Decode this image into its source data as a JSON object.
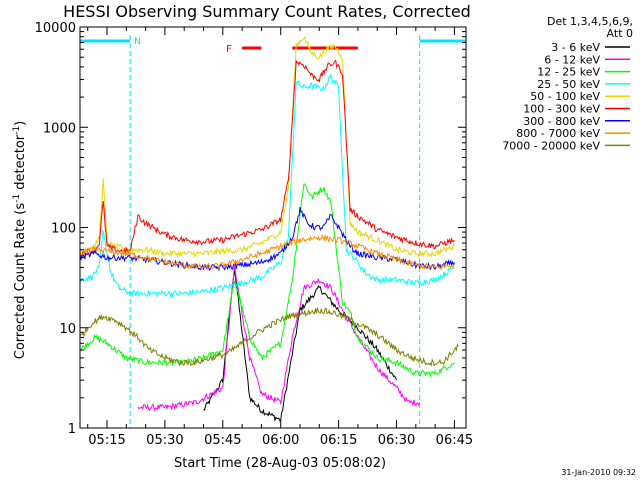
{
  "chart_data": {
    "type": "line",
    "title": "HESSI Observing Summary Count Rates, Corrected",
    "xlabel": "Start Time (28-Aug-03 05:08:02)",
    "ylabel_main": "Corrected Count Rate (s",
    "ylabel_sup1": "-1",
    "ylabel_mid": " detector",
    "ylabel_sup2": "-1",
    "ylabel_end": ")",
    "y_scale": "log",
    "ylim": [
      1,
      10000
    ],
    "xlim": [
      "05:08",
      "06:48"
    ],
    "x_ticks": [
      "05:15",
      "05:30",
      "05:45",
      "06:00",
      "06:15",
      "06:30",
      "06:45"
    ],
    "y_ticks": [
      "1",
      "10",
      "100",
      "1000",
      "10000"
    ],
    "legend": {
      "placement": "right",
      "header_line1": "Det 1,3,4,5,6,9,",
      "header_line2": "Att 0",
      "entries": [
        {
          "label": "3 - 6 keV",
          "color": "#000000"
        },
        {
          "label": "6 - 12 keV",
          "color": "#ff00ff"
        },
        {
          "label": "12 - 25 keV",
          "color": "#00ff00"
        },
        {
          "label": "25 - 50 keV",
          "color": "#00ffff"
        },
        {
          "label": "50 - 100 keV",
          "color": "#e6d800"
        },
        {
          "label": "100 - 300 keV",
          "color": "#ff0000"
        },
        {
          "label": "300 - 800 keV",
          "color": "#0000ff"
        },
        {
          "label": "800 - 7000 keV",
          "color": "#ff8c00"
        },
        {
          "label": "7000 - 20000 keV",
          "color": "#808000"
        }
      ]
    },
    "annotations": {
      "night_label": "N",
      "flare_label": "F",
      "night_color": "#00e5ff",
      "flare_color": "#ff0000",
      "night_intervals": [
        [
          "05:08",
          "05:21"
        ],
        [
          "06:36",
          "06:48"
        ]
      ],
      "night_boundaries": [
        "05:21",
        "06:36"
      ],
      "flare_intervals": [
        [
          "05:50",
          "05:55"
        ],
        [
          "06:03",
          "06:20"
        ]
      ]
    },
    "series": [
      {
        "name": "3 - 6 keV",
        "color": "#000000",
        "x": [
          "05:40",
          "05:45",
          "05:48",
          "05:52",
          "05:55",
          "06:00",
          "06:05",
          "06:10",
          "06:15",
          "06:20",
          "06:25",
          "06:30"
        ],
        "y": [
          1.5,
          3,
          40,
          2,
          1.5,
          1.2,
          15,
          25,
          15,
          10,
          6,
          3
        ]
      },
      {
        "name": "6 - 12 keV",
        "color": "#ff00ff",
        "x": [
          "05:23",
          "05:30",
          "05:38",
          "05:45",
          "05:48",
          "05:52",
          "05:55",
          "06:00",
          "06:03",
          "06:06",
          "06:10",
          "06:13",
          "06:16",
          "06:20",
          "06:25",
          "06:30",
          "06:33",
          "06:36"
        ],
        "y": [
          1.6,
          1.6,
          1.8,
          2.5,
          40,
          5,
          2.2,
          1.8,
          8,
          25,
          30,
          25,
          15,
          8,
          4,
          2.5,
          1.8,
          1.8
        ]
      },
      {
        "name": "12 - 25 keV",
        "color": "#00ff00",
        "x": [
          "05:08",
          "05:12",
          "05:15",
          "05:20",
          "05:25",
          "05:30",
          "05:35",
          "05:40",
          "05:45",
          "05:48",
          "05:52",
          "05:55",
          "06:00",
          "06:03",
          "06:06",
          "06:08",
          "06:11",
          "06:13",
          "06:16",
          "06:18",
          "06:20",
          "06:25",
          "06:30",
          "06:35",
          "06:40",
          "06:45"
        ],
        "y": [
          6,
          8,
          7,
          5,
          4.5,
          4.5,
          4.5,
          5,
          6,
          30,
          8,
          5,
          7,
          30,
          280,
          200,
          250,
          180,
          18,
          14,
          8,
          5,
          4.5,
          3.5,
          3.5,
          4.5
        ]
      },
      {
        "name": "25 - 50 keV",
        "color": "#00ffff",
        "x": [
          "05:08",
          "05:11",
          "05:13",
          "05:14",
          "05:16",
          "05:18",
          "05:21",
          "05:25",
          "05:30",
          "05:35",
          "05:40",
          "05:45",
          "05:50",
          "05:55",
          "06:00",
          "06:02",
          "06:04",
          "06:06",
          "06:08",
          "06:11",
          "06:13",
          "06:15",
          "06:17",
          "06:19",
          "06:22",
          "06:25",
          "06:30",
          "06:35",
          "06:40",
          "06:45"
        ],
        "y": [
          30,
          32,
          40,
          90,
          35,
          25,
          22,
          22,
          22,
          22,
          23,
          25,
          28,
          32,
          45,
          80,
          2800,
          2500,
          2600,
          2400,
          3200,
          2500,
          60,
          50,
          35,
          30,
          30,
          28,
          30,
          40
        ]
      },
      {
        "name": "50 - 100 keV",
        "color": "#e6d800",
        "x": [
          "05:08",
          "05:12",
          "05:13",
          "05:14",
          "05:15",
          "05:17",
          "05:19",
          "05:21",
          "05:25",
          "05:30",
          "05:35",
          "05:40",
          "05:45",
          "05:50",
          "05:55",
          "06:00",
          "06:02",
          "06:04",
          "06:06",
          "06:08",
          "06:10",
          "06:12",
          "06:14",
          "06:16",
          "06:18",
          "06:20",
          "06:25",
          "06:30",
          "06:35",
          "06:40",
          "06:45"
        ],
        "y": [
          60,
          65,
          80,
          300,
          70,
          65,
          62,
          60,
          60,
          55,
          55,
          55,
          58,
          60,
          70,
          90,
          250,
          6500,
          8000,
          5500,
          5000,
          6000,
          6500,
          5000,
          110,
          90,
          75,
          60,
          55,
          55,
          65
        ]
      },
      {
        "name": "100 - 300 keV",
        "color": "#ff0000",
        "x": [
          "05:08",
          "05:12",
          "05:13",
          "05:14",
          "05:15",
          "05:17",
          "05:19",
          "05:21",
          "05:23",
          "05:25",
          "05:30",
          "05:35",
          "05:40",
          "05:45",
          "05:50",
          "05:55",
          "06:00",
          "06:02",
          "06:04",
          "06:06",
          "06:08",
          "06:10",
          "06:12",
          "06:14",
          "06:16",
          "06:18",
          "06:20",
          "06:25",
          "06:30",
          "06:35",
          "06:40",
          "06:45"
        ],
        "y": [
          55,
          60,
          70,
          180,
          65,
          60,
          58,
          58,
          130,
          110,
          85,
          75,
          72,
          75,
          85,
          95,
          120,
          300,
          4500,
          4200,
          3300,
          3000,
          4000,
          4500,
          3500,
          150,
          130,
          95,
          80,
          70,
          65,
          75
        ]
      },
      {
        "name": "300 - 800 keV",
        "color": "#0000ff",
        "x": [
          "05:08",
          "05:12",
          "05:15",
          "05:20",
          "05:25",
          "05:30",
          "05:35",
          "05:40",
          "05:45",
          "05:50",
          "05:55",
          "06:00",
          "06:03",
          "06:05",
          "06:07",
          "06:09",
          "06:11",
          "06:13",
          "06:15",
          "06:18",
          "06:20",
          "06:25",
          "06:30",
          "06:35",
          "06:40",
          "06:45"
        ],
        "y": [
          50,
          55,
          50,
          50,
          48,
          45,
          42,
          40,
          40,
          42,
          45,
          55,
          80,
          150,
          110,
          100,
          100,
          130,
          100,
          65,
          55,
          50,
          48,
          42,
          40,
          45
        ]
      },
      {
        "name": "800 - 7000 keV",
        "color": "#ff8c00",
        "x": [
          "05:08",
          "05:12",
          "05:15",
          "05:20",
          "05:25",
          "05:30",
          "05:35",
          "05:40",
          "05:45",
          "05:50",
          "05:55",
          "06:00",
          "06:05",
          "06:10",
          "06:15",
          "06:20",
          "06:25",
          "06:30",
          "06:35",
          "06:40",
          "06:45"
        ],
        "y": [
          55,
          60,
          58,
          55,
          50,
          45,
          42,
          40,
          42,
          48,
          55,
          65,
          75,
          80,
          75,
          65,
          55,
          48,
          42,
          40,
          42
        ]
      },
      {
        "name": "7000 - 20000 keV",
        "color": "#808000",
        "x": [
          "05:08",
          "05:11",
          "05:14",
          "05:17",
          "05:20",
          "05:23",
          "05:26",
          "05:30",
          "05:34",
          "05:38",
          "05:42",
          "05:46",
          "05:50",
          "05:54",
          "05:58",
          "06:02",
          "06:06",
          "06:10",
          "06:14",
          "06:18",
          "06:22",
          "06:26",
          "06:30",
          "06:34",
          "06:38",
          "06:42",
          "06:45",
          "06:46"
        ],
        "y": [
          8,
          11,
          13,
          12,
          10,
          8,
          6,
          5,
          4.5,
          4.5,
          5,
          5.5,
          7,
          9,
          11,
          13,
          14,
          15,
          14,
          12,
          10,
          8,
          6,
          5,
          4.5,
          4.5,
          6,
          6.5
        ]
      }
    ],
    "timestamp": "31-Jan-2010 09:32"
  }
}
